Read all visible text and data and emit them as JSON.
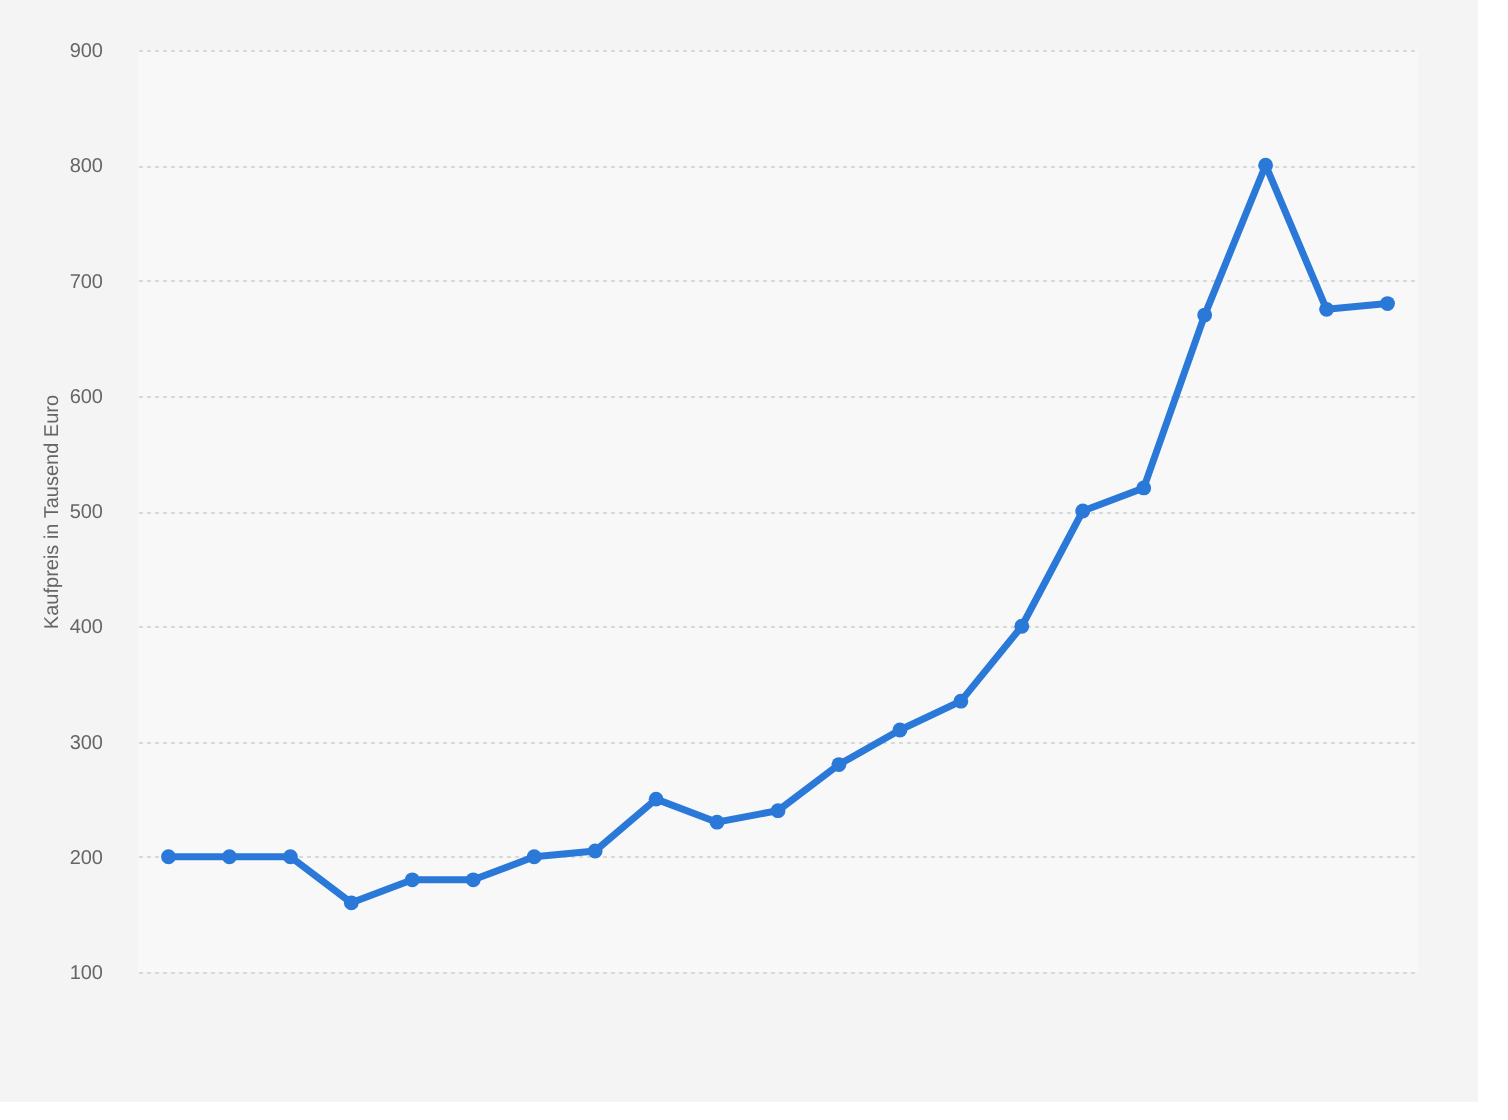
{
  "chart_data": {
    "type": "line",
    "ylabel": "Kaufpreis in Tausend Euro",
    "categories": [
      null,
      null,
      null,
      null,
      null,
      null,
      null,
      null,
      null,
      null,
      null,
      null,
      null,
      null,
      null,
      null,
      null,
      null,
      null,
      null,
      null
    ],
    "series": [
      {
        "color": "#2a78d8",
        "values": [
          200,
          200,
          200,
          160,
          180,
          180,
          200,
          205,
          250,
          230,
          240,
          280,
          310,
          335,
          400,
          500,
          520,
          670,
          800,
          675,
          680
        ]
      }
    ],
    "ylim": [
      100,
      900
    ],
    "yticks": [
      100,
      200,
      300,
      400,
      500,
      600,
      700,
      800,
      900
    ],
    "grid": "y",
    "marker": "circle",
    "line_style": "solid",
    "tick_labels": "y"
  }
}
